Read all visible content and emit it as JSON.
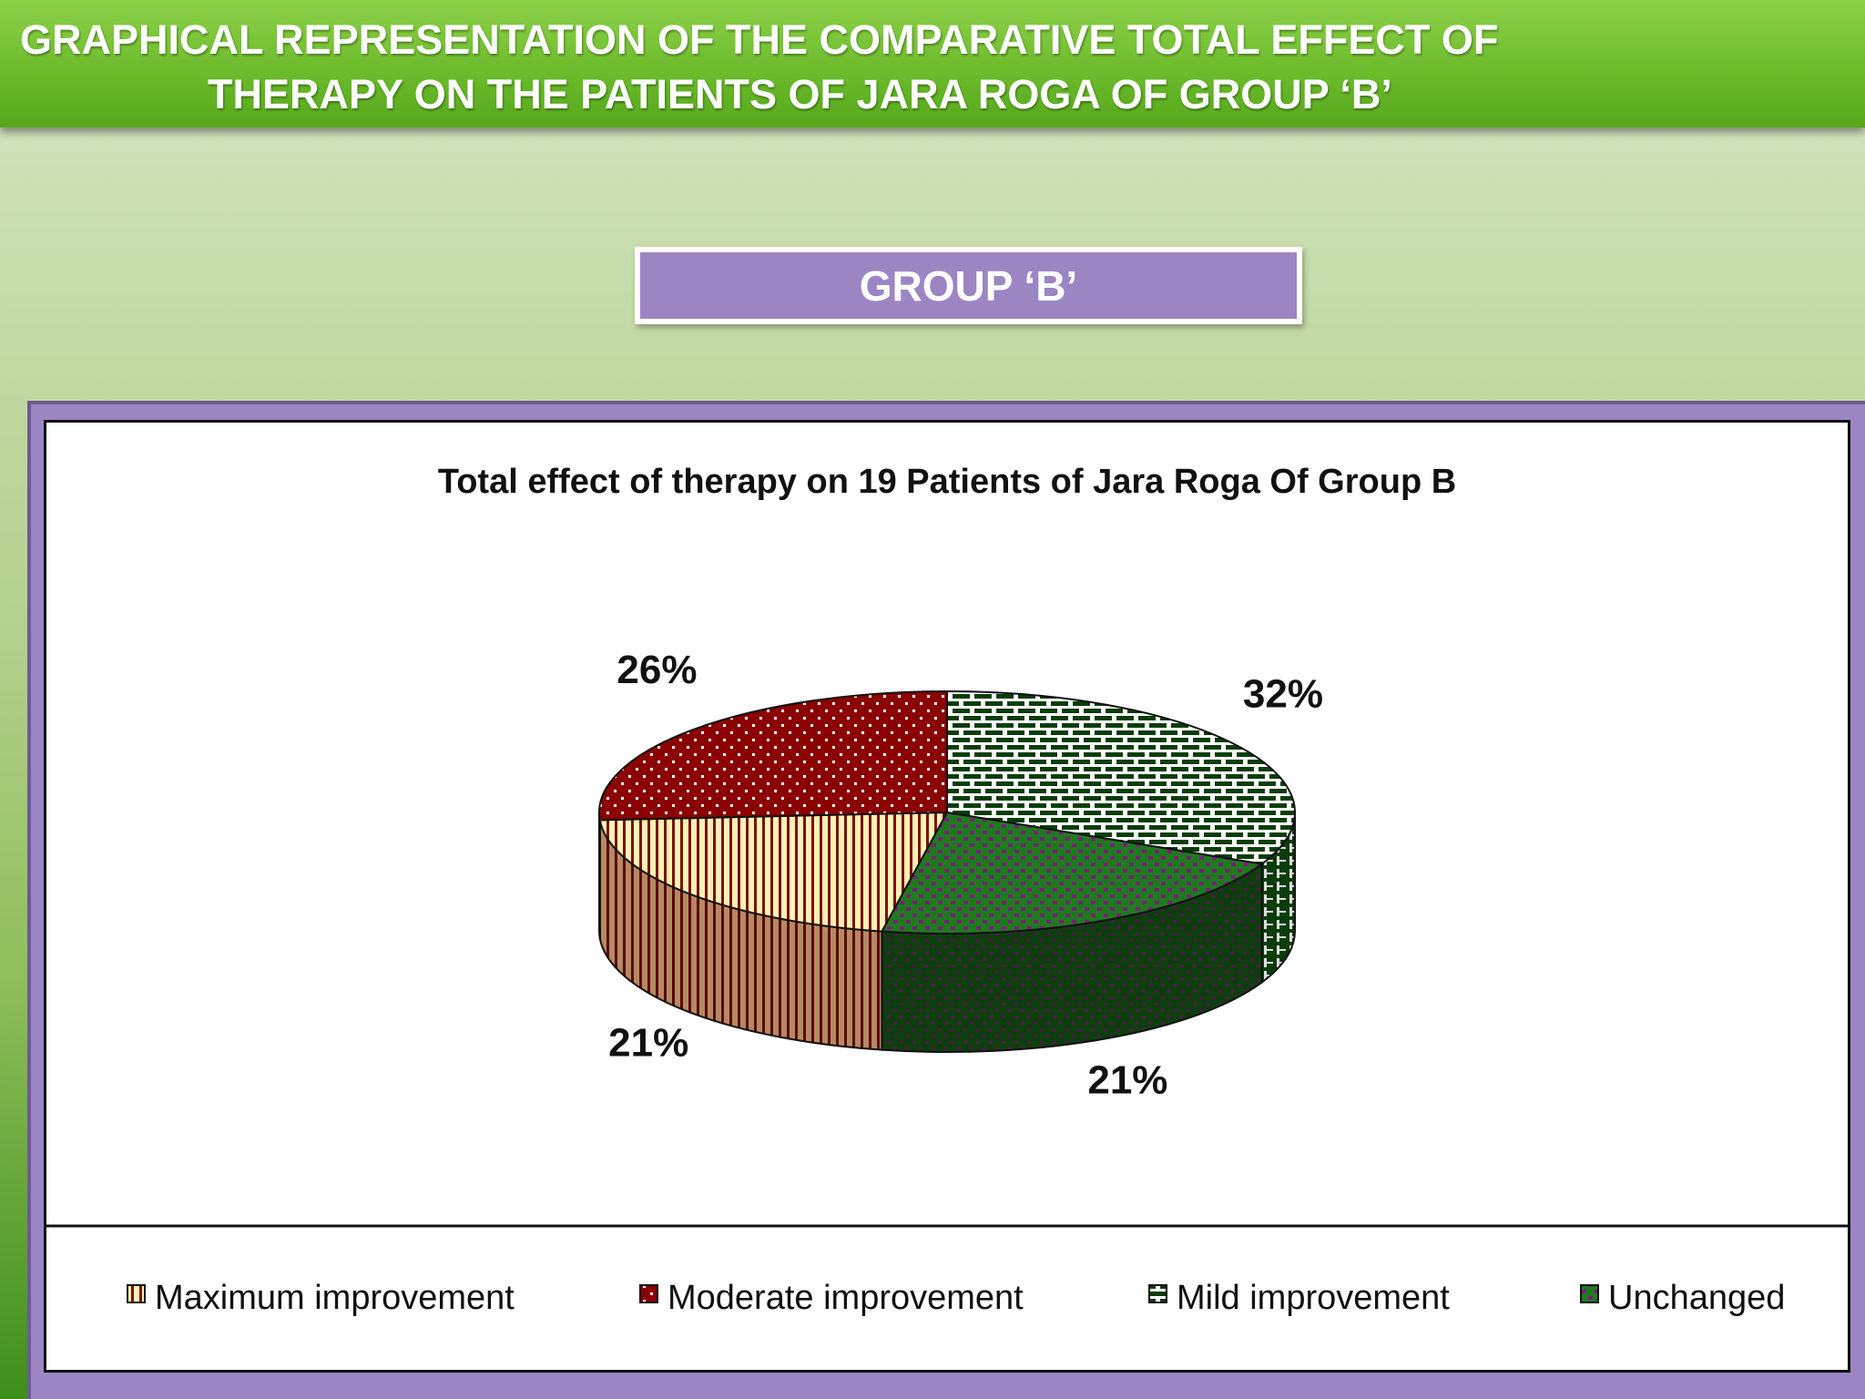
{
  "banner": {
    "line1": "GRAPHICAL REPRESENTATION OF THE COMPARATIVE TOTAL EFFECT OF",
    "line2": "THERAPY ON THE PATIENTS OF JARA ROGA OF GROUP ‘B’"
  },
  "group_label": "GROUP ‘B’",
  "colors": {
    "banner_green": "#6cbc2c",
    "group_purple": "#9b86c3",
    "maximum": "#fff2b3",
    "moderate": "#8b0000",
    "mild": "#0a3d0a",
    "unchanged": "#0f4d0f"
  },
  "chart_data": {
    "type": "pie",
    "title": "Total effect of therapy on 19 Patients of Jara Roga Of Group B",
    "legend_position": "bottom",
    "slices": [
      {
        "name": "Maximum improvement",
        "value": 21,
        "label": "21%"
      },
      {
        "name": "Moderate improvement",
        "value": 26,
        "label": "26%"
      },
      {
        "name": "Mild improvement",
        "value": 32,
        "label": "32%"
      },
      {
        "name": "Unchanged",
        "value": 21,
        "label": "21%"
      }
    ]
  }
}
